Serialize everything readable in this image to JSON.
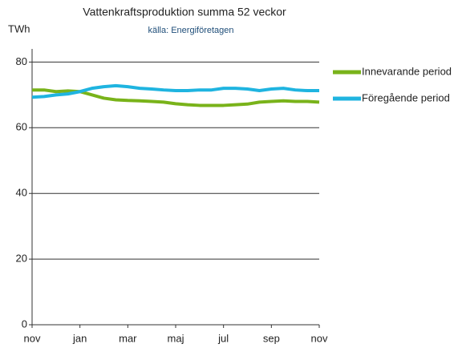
{
  "chart_data": {
    "type": "line",
    "title": "Vattenkraftsproduktion  summa 52 veckor",
    "subtitle": "källa: Energiföretagen",
    "y_label": "TWh",
    "x": [
      0,
      0.5,
      1,
      1.5,
      2,
      2.5,
      3,
      3.5,
      4,
      4.5,
      5,
      5.5,
      6,
      6.5,
      7,
      7.5,
      8,
      8.5,
      9,
      9.5,
      10,
      10.5,
      11,
      11.5,
      12
    ],
    "xlim": [
      0,
      12
    ],
    "xticks": [
      {
        "value": 0,
        "label": "nov"
      },
      {
        "value": 2,
        "label": "jan"
      },
      {
        "value": 4,
        "label": "mar"
      },
      {
        "value": 6,
        "label": "maj"
      },
      {
        "value": 8,
        "label": "jul"
      },
      {
        "value": 10,
        "label": "sep"
      },
      {
        "value": 12,
        "label": "nov"
      }
    ],
    "ylim": [
      0,
      84
    ],
    "yticks": [
      0,
      20,
      40,
      60,
      80
    ],
    "grid": true,
    "legend": "right",
    "series": [
      {
        "name": "Innevarande period",
        "color": "#79b31a",
        "values": [
          71.5,
          71.5,
          71,
          71.2,
          71,
          70,
          69,
          68.5,
          68.3,
          68.2,
          68,
          67.8,
          67.3,
          67,
          66.8,
          66.8,
          66.8,
          67,
          67.2,
          67.8,
          68,
          68.2,
          68,
          68,
          67.8
        ]
      },
      {
        "name": "Föregående period",
        "color": "#1fb4e0",
        "values": [
          69.3,
          69.5,
          70,
          70.3,
          71,
          72,
          72.5,
          72.8,
          72.5,
          72,
          71.8,
          71.5,
          71.3,
          71.3,
          71.5,
          71.5,
          72,
          72,
          71.8,
          71.3,
          71.8,
          72,
          71.5,
          71.3,
          71.3
        ]
      }
    ]
  }
}
